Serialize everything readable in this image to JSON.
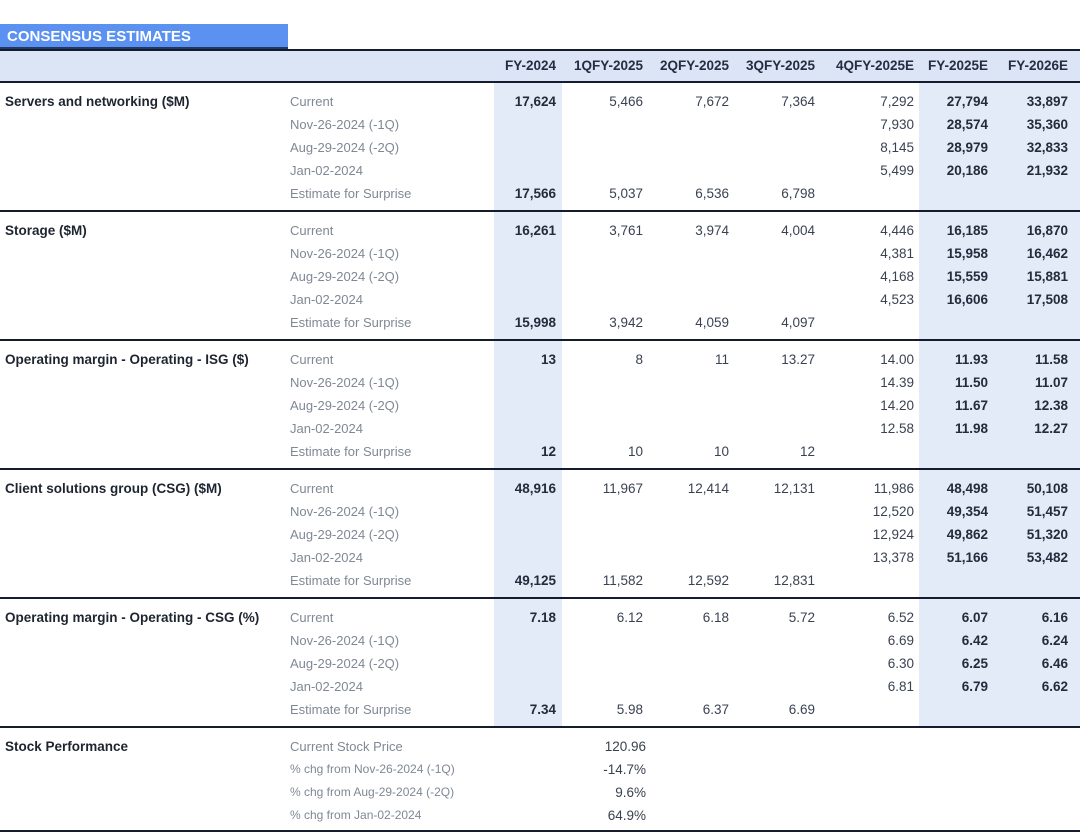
{
  "title": "CONSENSUS ESTIMATES",
  "colors": {
    "title_bg": "#5B92F2",
    "title_text": "#FFFFFF",
    "header_bg": "#DBE5F6",
    "column_band_bg": "#E3EBF9",
    "divider_line": "#141C2E",
    "bold_number_text": "#232B3C",
    "regular_number_text": "#3A4252",
    "row_label_gray": "#7F8894"
  },
  "chart_data": {
    "type": "table",
    "title": "CONSENSUS ESTIMATES",
    "columns": [
      "FY-2024",
      "1QFY-2025",
      "2QFY-2025",
      "3QFY-2025",
      "4QFY-2025E",
      "FY-2025E",
      "FY-2026E"
    ],
    "highlighted_columns": [
      "FY-2024",
      "FY-2025E",
      "FY-2026E"
    ],
    "sections": [
      {
        "id": "servers-and-networking",
        "name": "Servers and networking ($M)",
        "rows": [
          {
            "label": "Current",
            "values": [
              "17,624",
              "5,466",
              "7,672",
              "7,364",
              "7,292",
              "27,794",
              "33,897"
            ]
          },
          {
            "label": "Nov-26-2024 (-1Q)",
            "values": [
              "",
              "",
              "",
              "",
              "7,930",
              "28,574",
              "35,360"
            ]
          },
          {
            "label": "Aug-29-2024 (-2Q)",
            "values": [
              "",
              "",
              "",
              "",
              "8,145",
              "28,979",
              "32,833"
            ]
          },
          {
            "label": "Jan-02-2024",
            "values": [
              "",
              "",
              "",
              "",
              "5,499",
              "20,186",
              "21,932"
            ]
          },
          {
            "label": "Estimate for Surprise",
            "values": [
              "17,566",
              "5,037",
              "6,536",
              "6,798",
              "",
              "",
              ""
            ]
          }
        ]
      },
      {
        "id": "storage",
        "name": "Storage ($M)",
        "rows": [
          {
            "label": "Current",
            "values": [
              "16,261",
              "3,761",
              "3,974",
              "4,004",
              "4,446",
              "16,185",
              "16,870"
            ]
          },
          {
            "label": "Nov-26-2024 (-1Q)",
            "values": [
              "",
              "",
              "",
              "",
              "4,381",
              "15,958",
              "16,462"
            ]
          },
          {
            "label": "Aug-29-2024 (-2Q)",
            "values": [
              "",
              "",
              "",
              "",
              "4,168",
              "15,559",
              "15,881"
            ]
          },
          {
            "label": "Jan-02-2024",
            "values": [
              "",
              "",
              "",
              "",
              "4,523",
              "16,606",
              "17,508"
            ]
          },
          {
            "label": "Estimate for Surprise",
            "values": [
              "15,998",
              "3,942",
              "4,059",
              "4,097",
              "",
              "",
              ""
            ]
          }
        ]
      },
      {
        "id": "operating-margin-isg",
        "name": "Operating margin - Operating - ISG ($)",
        "rows": [
          {
            "label": "Current",
            "values": [
              "13",
              "8",
              "11",
              "13.27",
              "14.00",
              "11.93",
              "11.58"
            ]
          },
          {
            "label": "Nov-26-2024 (-1Q)",
            "values": [
              "",
              "",
              "",
              "",
              "14.39",
              "11.50",
              "11.07"
            ]
          },
          {
            "label": "Aug-29-2024 (-2Q)",
            "values": [
              "",
              "",
              "",
              "",
              "14.20",
              "11.67",
              "12.38"
            ]
          },
          {
            "label": "Jan-02-2024",
            "values": [
              "",
              "",
              "",
              "",
              "12.58",
              "11.98",
              "12.27"
            ]
          },
          {
            "label": "Estimate for Surprise",
            "values": [
              "12",
              "10",
              "10",
              "12",
              "",
              "",
              ""
            ]
          }
        ]
      },
      {
        "id": "client-solutions-group-csg",
        "name": "Client solutions group (CSG) ($M)",
        "rows": [
          {
            "label": "Current",
            "values": [
              "48,916",
              "11,967",
              "12,414",
              "12,131",
              "11,986",
              "48,498",
              "50,108"
            ]
          },
          {
            "label": "Nov-26-2024 (-1Q)",
            "values": [
              "",
              "",
              "",
              "",
              "12,520",
              "49,354",
              "51,457"
            ]
          },
          {
            "label": "Aug-29-2024 (-2Q)",
            "values": [
              "",
              "",
              "",
              "",
              "12,924",
              "49,862",
              "51,320"
            ]
          },
          {
            "label": "Jan-02-2024",
            "values": [
              "",
              "",
              "",
              "",
              "13,378",
              "51,166",
              "53,482"
            ]
          },
          {
            "label": "Estimate for Surprise",
            "values": [
              "49,125",
              "11,582",
              "12,592",
              "12,831",
              "",
              "",
              ""
            ]
          }
        ]
      },
      {
        "id": "operating-margin-csg",
        "name": "Operating margin - Operating - CSG (%)",
        "rows": [
          {
            "label": "Current",
            "values": [
              "7.18",
              "6.12",
              "6.18",
              "5.72",
              "6.52",
              "6.07",
              "6.16"
            ]
          },
          {
            "label": "Nov-26-2024 (-1Q)",
            "values": [
              "",
              "",
              "",
              "",
              "6.69",
              "6.42",
              "6.24"
            ]
          },
          {
            "label": "Aug-29-2024 (-2Q)",
            "values": [
              "",
              "",
              "",
              "",
              "6.30",
              "6.25",
              "6.46"
            ]
          },
          {
            "label": "Jan-02-2024",
            "values": [
              "",
              "",
              "",
              "",
              "6.81",
              "6.79",
              "6.62"
            ]
          },
          {
            "label": "Estimate for Surprise",
            "values": [
              "7.34",
              "5.98",
              "6.37",
              "6.69",
              "",
              "",
              ""
            ]
          }
        ]
      }
    ],
    "stock_performance": {
      "id": "stock-performance",
      "name": "Stock Performance",
      "rows": [
        {
          "label": "Current Stock Price",
          "value": "120.96"
        },
        {
          "label": "% chg from Nov-26-2024 (-1Q)",
          "value": "-14.7%"
        },
        {
          "label": "% chg from Aug-29-2024 (-2Q)",
          "value": "9.6%"
        },
        {
          "label": "% chg from Jan-02-2024",
          "value": "64.9%"
        }
      ]
    }
  }
}
